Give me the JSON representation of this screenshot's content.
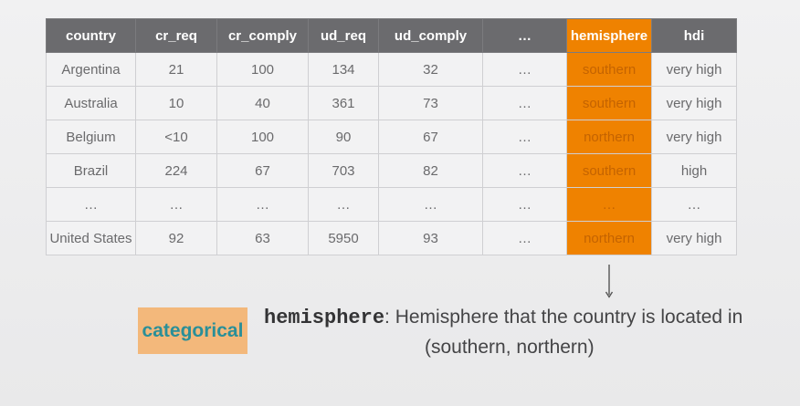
{
  "table": {
    "headers": [
      "country",
      "cr_req",
      "cr_comply",
      "ud_req",
      "ud_comply",
      "…",
      "hemisphere",
      "hdi"
    ],
    "rows": [
      [
        "Argentina",
        "21",
        "100",
        "134",
        "32",
        "…",
        "southern",
        "very high"
      ],
      [
        "Australia",
        "10",
        "40",
        "361",
        "73",
        "…",
        "southern",
        "very high"
      ],
      [
        "Belgium",
        "<10",
        "100",
        "90",
        "67",
        "…",
        "northern",
        "very high"
      ],
      [
        "Brazil",
        "224",
        "67",
        "703",
        "82",
        "…",
        "southern",
        "high"
      ],
      [
        "…",
        "…",
        "…",
        "…",
        "…",
        "…",
        "…",
        "…"
      ],
      [
        "United States",
        "92",
        "63",
        "5950",
        "93",
        "…",
        "northern",
        "very high"
      ]
    ],
    "highlight_column_index": 6,
    "highlight_color": "#ef8200",
    "header_color": "#6b6b6e"
  },
  "definition": {
    "badge": "categorical",
    "badge_color": "#f3b87b",
    "badge_text_color": "#2a8f98",
    "term": "hemisphere",
    "separator": ":",
    "description": " Hemisphere that the country is located in",
    "values": "(southern, northern)"
  },
  "arrow_icon": "arrow-down-icon"
}
